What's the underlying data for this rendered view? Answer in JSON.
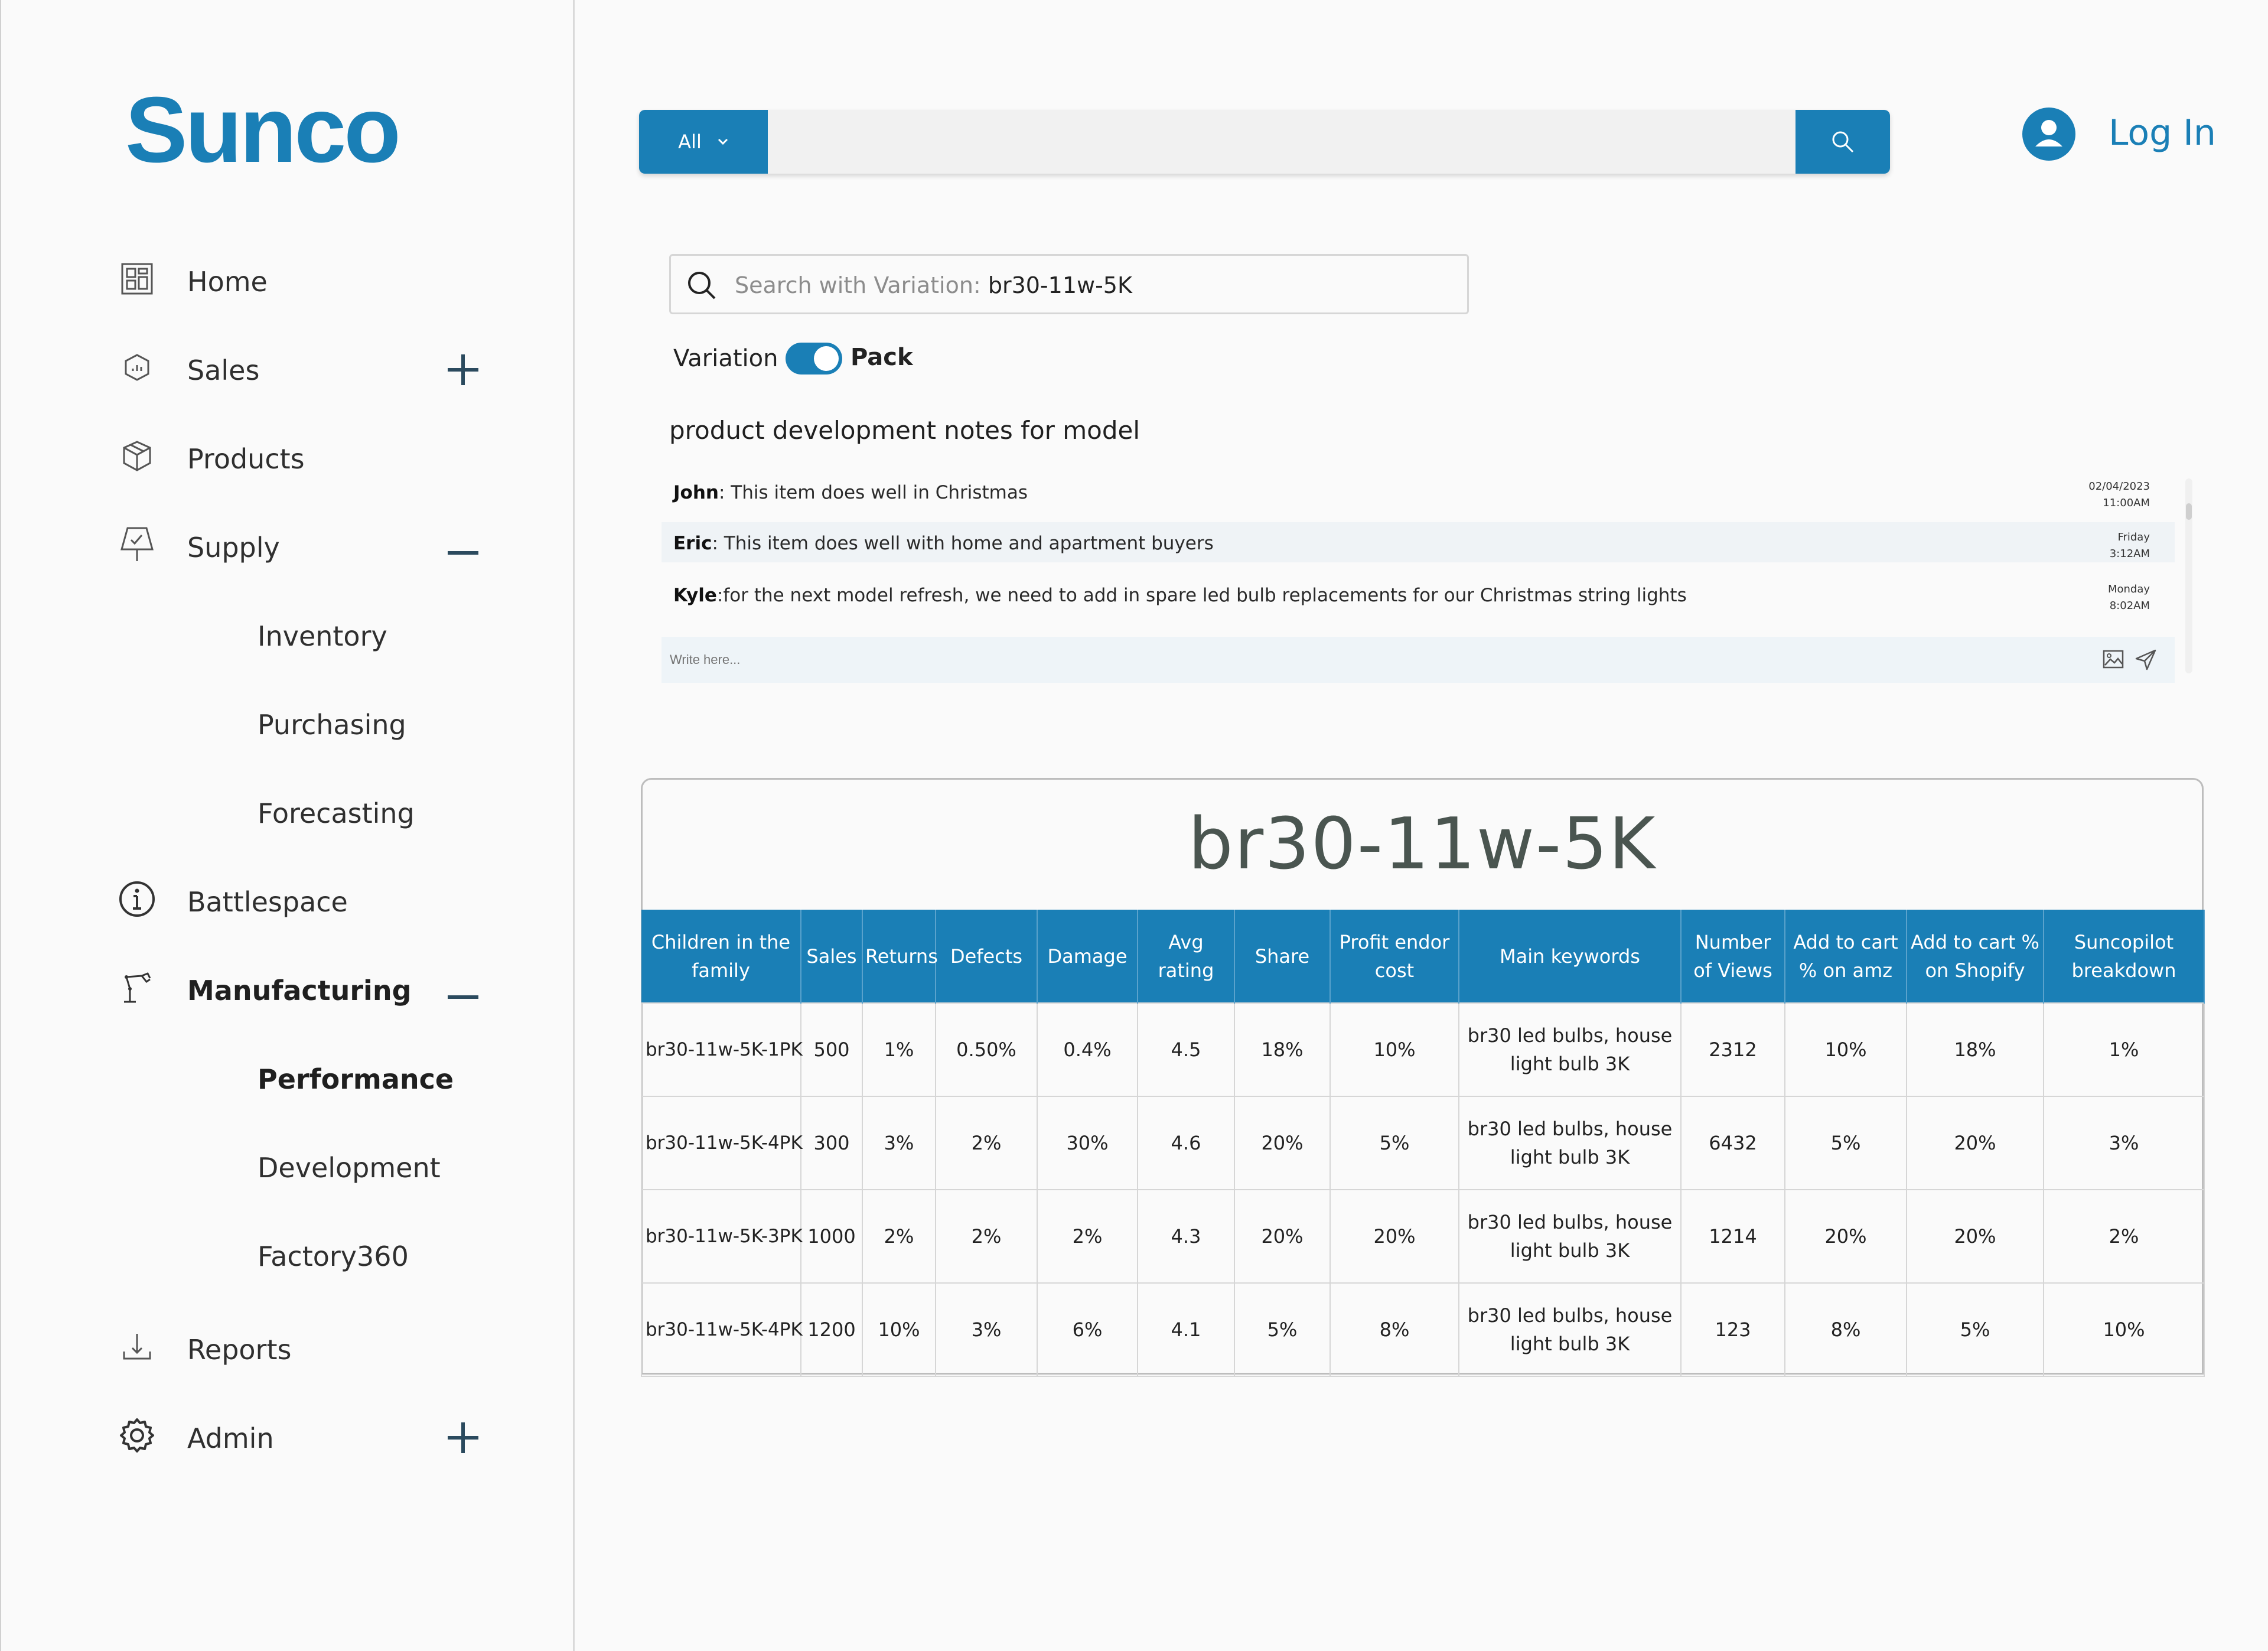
{
  "brand": {
    "logo": "Sunco",
    "color": "#1a7fb6"
  },
  "nav": {
    "home": "Home",
    "sales": "Sales",
    "products": "Products",
    "supply": "Supply",
    "inventory": "Inventory",
    "purchasing": "Purchasing",
    "forecasting": "Forecasting",
    "battlespace": "Battlespace",
    "manufacturing": "Manufacturing",
    "performance": "Performance",
    "development": "Development",
    "factory360": "Factory360",
    "reports": "Reports",
    "admin": "Admin"
  },
  "header": {
    "category": "All",
    "search_value": "",
    "login": "Log In"
  },
  "variation_search": {
    "placeholder": "Search with Variation:",
    "value": "br30-11w-5K"
  },
  "toggle": {
    "left_label": "Variation",
    "right_label": "Pack"
  },
  "notes": {
    "title": "product development notes for model",
    "items": [
      {
        "author": "John",
        "text": ": This item does well in Christmas",
        "date": "02/04/2023",
        "time": "11:00AM"
      },
      {
        "author": "Eric",
        "text": ": This item does well with home and apartment buyers",
        "date": "Friday",
        "time": "3:12AM"
      },
      {
        "author": "Kyle",
        "text": ":for the next model refresh, we need to add in spare led bulb replacements for our Christmas string lights",
        "date": "Monday",
        "time": "8:02AM"
      }
    ],
    "write_placeholder": "Write here..."
  },
  "table": {
    "title": "br30-11w-5K",
    "headers": [
      "Children in the family",
      "Sales",
      "Returns",
      "Defects",
      "Damage",
      "Avg rating",
      "Share",
      "Profit endor cost",
      "Main keywords",
      "Number of Views",
      "Add to cart % on amz",
      "Add to cart % on Shopify",
      "Suncopilot breakdown"
    ],
    "rows": [
      [
        "br30-11w-5K-1PK",
        "500",
        "1%",
        "0.50%",
        "0.4%",
        "4.5",
        "18%",
        "10%",
        "br30 led bulbs, house light bulb 3K",
        "2312",
        "10%",
        "18%",
        "1%"
      ],
      [
        "br30-11w-5K-4PK",
        "300",
        "3%",
        "2%",
        "30%",
        "4.6",
        "20%",
        "5%",
        "br30 led bulbs, house light bulb 3K",
        "6432",
        "5%",
        "20%",
        "3%"
      ],
      [
        "br30-11w-5K-3PK",
        "1000",
        "2%",
        "2%",
        "2%",
        "4.3",
        "20%",
        "20%",
        "br30 led bulbs, house light bulb 3K",
        "1214",
        "20%",
        "20%",
        "2%"
      ],
      [
        "br30-11w-5K-4PK",
        "1200",
        "10%",
        "3%",
        "6%",
        "4.1",
        "5%",
        "8%",
        "br30 led bulbs, house light bulb 3K",
        "123",
        "8%",
        "5%",
        "10%"
      ]
    ]
  }
}
